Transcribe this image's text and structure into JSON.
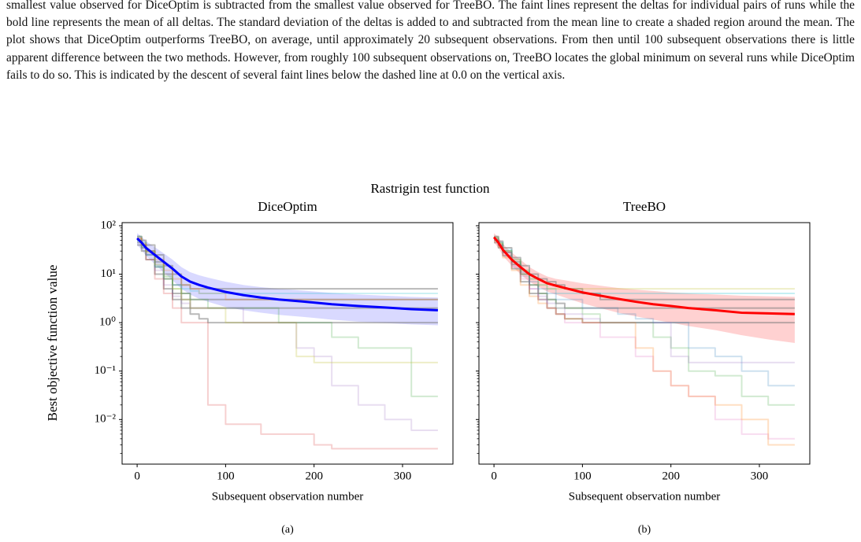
{
  "text": {
    "paragraph": "smallest value observed for DiceOptim is subtracted from the smallest value observed for TreeBO. The faint lines represent the deltas for individual pairs of runs while the bold line represents the mean of all deltas. The standard deviation of the deltas is added to and subtracted from the mean line to create a shaded region around the mean. The plot shows that DiceOptim outperforms TreeBO, on average, until approximately 20 subsequent observations. From then until 100 subsequent observations there is little apparent difference between the two methods. However, from roughly 100 subsequent observations on, TreeBO locates the global minimum on several runs while DiceOptim fails to do so. This is indicated by the descent of several faint lines below the dashed line at 0.0 on the vertical axis."
  },
  "figure": {
    "title": "Rastrigin test function"
  },
  "chart_data": [
    {
      "type": "line",
      "title": "DiceOptim",
      "caption": "(a)",
      "xlabel": "Subsequent observation number",
      "ylabel": "Best objective function value",
      "log_y": true,
      "xlim": [
        -17,
        357
      ],
      "xticks": [
        0,
        100,
        200,
        300
      ],
      "ylim": [
        0.0012,
        116
      ],
      "yticks": [
        {
          "value": 100,
          "label": "10²"
        },
        {
          "value": 10,
          "label": "10¹"
        },
        {
          "value": 1,
          "label": "10⁰"
        },
        {
          "value": 0.1,
          "label": "10⁻¹"
        },
        {
          "value": 0.01,
          "label": "10⁻²"
        }
      ],
      "x": [
        0,
        5,
        10,
        20,
        30,
        40,
        50,
        60,
        70,
        80,
        100,
        120,
        140,
        160,
        180,
        200,
        220,
        250,
        280,
        310,
        340
      ],
      "band": {
        "color": "rgba(0,0,255,0.15)",
        "lower": [
          40,
          32,
          24,
          16,
          11,
          7.5,
          5,
          3.8,
          3.1,
          2.7,
          2.1,
          1.8,
          1.6,
          1.45,
          1.35,
          1.25,
          1.15,
          1.05,
          0.98,
          0.92,
          0.88
        ],
        "upper": [
          70,
          60,
          48,
          36,
          27,
          20,
          14,
          11,
          9.5,
          8.5,
          7,
          6,
          5.4,
          5,
          4.7,
          4.4,
          4.1,
          3.8,
          3.6,
          3.4,
          3.3
        ]
      },
      "series": [
        {
          "color": "rgba(127,127,127,0.55)",
          "drawstyle": "steps-post",
          "values": [
            60,
            50,
            40,
            25,
            15,
            10,
            6,
            5,
            5,
            5,
            5,
            5,
            5,
            5,
            5,
            5,
            5,
            5,
            5,
            5,
            5
          ]
        },
        {
          "color": "rgba(127,127,127,0.55)",
          "drawstyle": "steps-post",
          "values": [
            50,
            40,
            30,
            18,
            10,
            6,
            4,
            3,
            3,
            3,
            3,
            3,
            3,
            3,
            3,
            3,
            3,
            3,
            3,
            3,
            3
          ]
        },
        {
          "color": "rgba(127,127,127,0.55)",
          "drawstyle": "steps-post",
          "values": [
            45,
            35,
            25,
            14,
            8,
            4,
            3,
            2,
            2,
            2,
            2,
            2,
            2,
            2,
            2,
            2,
            2,
            2,
            2,
            2,
            2
          ]
        },
        {
          "color": "rgba(127,127,127,0.55)",
          "drawstyle": "steps-post",
          "values": [
            40,
            30,
            20,
            10,
            5,
            3,
            2,
            1.5,
            1.2,
            1,
            1,
            1,
            1,
            1,
            1,
            1,
            1,
            1,
            1,
            1,
            1
          ]
        },
        {
          "color": "rgba(214,39,40,0.22)",
          "drawstyle": "steps-post",
          "values": [
            55,
            40,
            20,
            8,
            4,
            2,
            1,
            1,
            1,
            0.02,
            0.008,
            0.008,
            0.005,
            0.005,
            0.005,
            0.003,
            0.0025,
            0.0025,
            0.0025,
            0.0025,
            0.0025
          ]
        },
        {
          "color": "rgba(44,160,44,0.22)",
          "drawstyle": "steps-post",
          "values": [
            60,
            45,
            30,
            15,
            8,
            5,
            4,
            3,
            3,
            2,
            2,
            2,
            2,
            1,
            1,
            1,
            0.5,
            0.3,
            0.3,
            0.03,
            0.03
          ]
        },
        {
          "color": "rgba(148,103,189,0.22)",
          "drawstyle": "steps-post",
          "values": [
            50,
            38,
            26,
            12,
            6,
            3.5,
            2.5,
            2,
            2,
            2,
            2,
            1,
            1,
            1,
            0.3,
            0.2,
            0.05,
            0.02,
            0.01,
            0.006,
            0.006
          ]
        },
        {
          "color": "rgba(255,127,14,0.22)",
          "drawstyle": "steps-post",
          "values": [
            55,
            42,
            30,
            20,
            12,
            8,
            6,
            5,
            4,
            4,
            3,
            3,
            3,
            3,
            3,
            3,
            3,
            3,
            3,
            3,
            3
          ]
        },
        {
          "color": "rgba(23,190,207,0.22)",
          "drawstyle": "steps-post",
          "values": [
            48,
            36,
            25,
            14,
            9,
            6,
            5,
            4.5,
            4,
            4,
            4,
            4,
            4,
            4,
            4,
            4,
            4,
            4,
            4,
            4,
            4
          ]
        },
        {
          "color": "rgba(188,189,34,0.25)",
          "drawstyle": "steps-post",
          "values": [
            52,
            40,
            28,
            16,
            9,
            5,
            3,
            2,
            2,
            2,
            1,
            1,
            1,
            1,
            0.2,
            0.15,
            0.15,
            0.15,
            0.15,
            0.15,
            0.15
          ]
        },
        {
          "color": "#0000ff",
          "drawstyle": "default",
          "values": [
            55,
            45,
            35,
            25,
            18,
            13,
            9,
            7,
            6,
            5.3,
            4.3,
            3.7,
            3.3,
            3.0,
            2.8,
            2.6,
            2.4,
            2.2,
            2.05,
            1.9,
            1.8
          ]
        }
      ]
    },
    {
      "type": "line",
      "title": "TreeBO",
      "caption": "(b)",
      "xlabel": "Subsequent observation number",
      "log_y": true,
      "xlim": [
        -17,
        357
      ],
      "xticks": [
        0,
        100,
        200,
        300
      ],
      "ylim": [
        0.0012,
        116
      ],
      "x": [
        0,
        5,
        10,
        20,
        30,
        40,
        50,
        60,
        70,
        80,
        100,
        120,
        140,
        160,
        180,
        200,
        220,
        250,
        280,
        310,
        340
      ],
      "band": {
        "color": "rgba(255,0,0,0.18)",
        "lower": [
          45,
          35,
          24,
          15,
          10,
          7,
          5.5,
          4.4,
          3.8,
          3.3,
          2.5,
          2.0,
          1.6,
          1.35,
          1.15,
          1.0,
          0.85,
          0.7,
          0.55,
          0.45,
          0.38
        ],
        "upper": [
          70,
          58,
          42,
          28,
          20,
          14,
          11,
          9,
          8,
          7.5,
          6.5,
          5.8,
          5.2,
          4.8,
          4.5,
          4.2,
          4,
          3.8,
          3.6,
          3.5,
          3.4
        ]
      },
      "series": [
        {
          "color": "rgba(127,127,127,0.55)",
          "drawstyle": "steps-post",
          "values": [
            60,
            48,
            35,
            22,
            15,
            10,
            8,
            7,
            6,
            5,
            4,
            3,
            3,
            3,
            3,
            3,
            3,
            3,
            3,
            3,
            3
          ]
        },
        {
          "color": "rgba(127,127,127,0.55)",
          "drawstyle": "steps-post",
          "values": [
            50,
            40,
            28,
            16,
            10,
            6,
            4,
            3,
            2.5,
            2,
            2,
            2,
            2,
            2,
            2,
            2,
            2,
            2,
            2,
            2,
            2
          ]
        },
        {
          "color": "rgba(127,127,127,0.55)",
          "drawstyle": "steps-post",
          "values": [
            45,
            35,
            24,
            13,
            7,
            4,
            3,
            2,
            1.5,
            1.2,
            1,
            1,
            1,
            1,
            1,
            1,
            1,
            1,
            1,
            1,
            1
          ]
        },
        {
          "color": "rgba(23,190,207,0.25)",
          "drawstyle": "steps-post",
          "values": [
            55,
            45,
            32,
            20,
            12,
            8,
            6,
            5,
            4,
            4,
            4,
            4,
            4,
            4,
            4,
            4,
            4,
            4,
            4,
            4,
            4
          ]
        },
        {
          "color": "rgba(227,119,194,0.25)",
          "drawstyle": "steps-post",
          "values": [
            52,
            38,
            25,
            14,
            8,
            5,
            3,
            2,
            1.5,
            1,
            1,
            0.5,
            0.5,
            0.2,
            0.1,
            0.05,
            0.03,
            0.01,
            0.005,
            0.004,
            0.004
          ]
        },
        {
          "color": "rgba(44,160,44,0.22)",
          "drawstyle": "steps-post",
          "values": [
            58,
            44,
            30,
            18,
            10,
            6,
            4,
            3,
            2,
            2,
            1.5,
            1,
            1,
            1,
            0.5,
            0.3,
            0.1,
            0.08,
            0.03,
            0.02,
            0.02
          ]
        },
        {
          "color": "rgba(31,119,180,0.22)",
          "drawstyle": "steps-post",
          "values": [
            50,
            40,
            30,
            18,
            11,
            7,
            5,
            4,
            3,
            3,
            2,
            2,
            1.5,
            1.2,
            1,
            1,
            0.3,
            0.2,
            0.1,
            0.05,
            0.05
          ]
        },
        {
          "color": "rgba(255,127,14,0.25)",
          "drawstyle": "steps-post",
          "values": [
            48,
            36,
            22,
            12,
            6,
            3.5,
            2.5,
            2,
            1.5,
            1.2,
            1,
            1,
            1,
            0.3,
            0.1,
            0.05,
            0.03,
            0.02,
            0.01,
            0.003,
            0.003
          ]
        },
        {
          "color": "rgba(188,189,34,0.25)",
          "drawstyle": "steps-post",
          "values": [
            55,
            42,
            30,
            20,
            12,
            8,
            6,
            5,
            5,
            5,
            5,
            5,
            5,
            5,
            5,
            5,
            5,
            5,
            5,
            5,
            5
          ]
        },
        {
          "color": "rgba(148,103,189,0.22)",
          "drawstyle": "steps-post",
          "values": [
            52,
            40,
            28,
            15,
            9,
            5,
            3.5,
            2.5,
            2,
            1.5,
            1.2,
            1,
            1,
            1,
            1,
            0.2,
            0.15,
            0.15,
            0.15,
            0.15,
            0.15
          ]
        },
        {
          "color": "#ff0000",
          "drawstyle": "default",
          "values": [
            58,
            45,
            32,
            20,
            14,
            10,
            8,
            6.5,
            5.8,
            5.2,
            4.2,
            3.6,
            3.1,
            2.7,
            2.4,
            2.2,
            2.0,
            1.8,
            1.6,
            1.55,
            1.5
          ]
        }
      ]
    }
  ]
}
